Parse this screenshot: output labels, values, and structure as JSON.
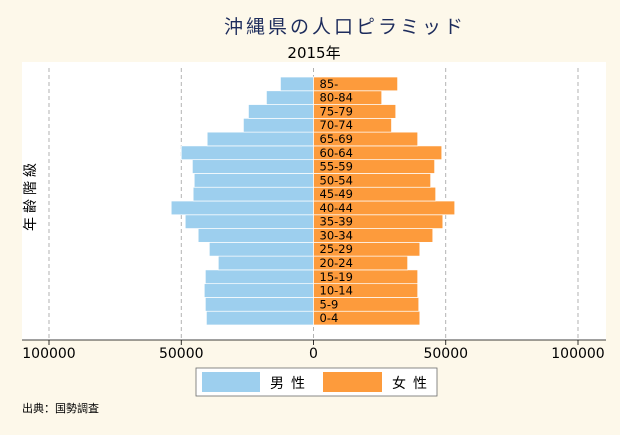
{
  "chart_data": {
    "type": "bar",
    "orientation": "horizontal",
    "title": "沖縄県の人口ピラミッド",
    "subtitle": "2015年",
    "ylabel": "年齢階級",
    "categories": [
      "0-4",
      "5-9",
      "10-14",
      "15-19",
      "20-24",
      "25-29",
      "30-34",
      "35-39",
      "40-44",
      "45-49",
      "50-54",
      "55-59",
      "60-64",
      "65-69",
      "70-74",
      "75-79",
      "80-84",
      "85-"
    ],
    "series": [
      {
        "name": "男性",
        "side": "left",
        "color": "#9dcfee",
        "values": [
          40500,
          40900,
          41300,
          40900,
          36000,
          39400,
          43600,
          48500,
          53800,
          45500,
          45100,
          45800,
          50000,
          40200,
          26500,
          24600,
          17800,
          12500
        ]
      },
      {
        "name": "女性",
        "side": "right",
        "color": "#fd9b3c",
        "values": [
          40200,
          39800,
          39400,
          39400,
          35600,
          40200,
          45100,
          48900,
          53400,
          46200,
          44300,
          45800,
          48500,
          39400,
          29500,
          31100,
          25800,
          31800
        ]
      }
    ],
    "xlim": [
      -100000,
      100000
    ],
    "xticks": [
      -100000,
      -50000,
      0,
      50000,
      100000
    ],
    "xtick_labels": [
      "100000",
      "50000",
      "0",
      "50000",
      "100000"
    ],
    "grid": true,
    "legend_position": "bottom"
  },
  "source_note": "出典：国勢調査",
  "colors": {
    "background": "#fdf8ea",
    "plot_background": "#ffffff",
    "title": "#1d2c5c",
    "grid": "#a0a0a0"
  }
}
